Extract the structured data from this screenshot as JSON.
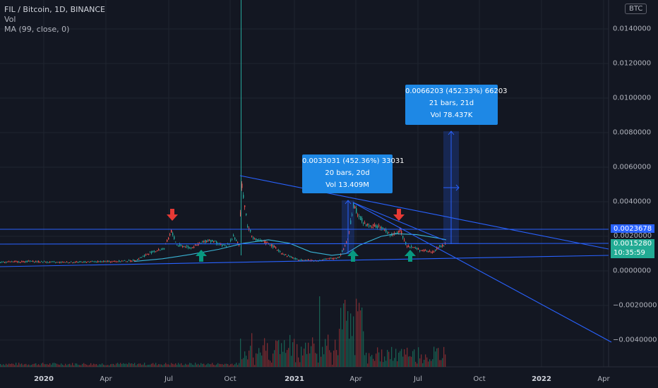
{
  "legend": {
    "title": "FIL / Bitcoin, 1D, BINANCE",
    "vol": "Vol",
    "ma": "MA (99, close, 0)"
  },
  "badge": "BTC",
  "y_axis": {
    "labels": [
      "0.0140000",
      "0.0120000",
      "0.0100000",
      "0.0080000",
      "0.0060000",
      "0.0040000",
      "0.0020000",
      "0.0000000",
      "−0.0020000",
      "−0.0040000"
    ],
    "values": [
      0.014,
      0.012,
      0.01,
      0.008,
      0.006,
      0.004,
      0.002,
      0.0,
      -0.002,
      -0.004
    ]
  },
  "x_axis": {
    "labels": [
      "2020",
      "Apr",
      "Jul",
      "Oct",
      "2021",
      "Apr",
      "Jul",
      "Oct",
      "2022",
      "Apr"
    ]
  },
  "price_tags": {
    "upper_line": "0.0023678",
    "hidden_label": "0.0020000",
    "last_price": "0.0015280",
    "countdown": "10:35:59"
  },
  "callouts": {
    "first": {
      "line1": "0.0033031 (452.36%) 33031",
      "line2": "20 bars, 20d",
      "line3": "Vol 13.409M"
    },
    "second": {
      "line1": "0.0066203 (452.33%) 66203",
      "line2": "21 bars, 21d",
      "line3": "Vol 78.437K"
    }
  },
  "colors": {
    "background": "#131722",
    "up": "#26a69a",
    "down": "#ef5350",
    "trendline": "#2962ff",
    "ma": "#3ab4d6",
    "callout": "#1e88e5",
    "arrow_down": "#e53935",
    "arrow_up": "#089981",
    "last_price": "#22ab94"
  },
  "chart_data": {
    "type": "candlestick",
    "symbol": "FIL / Bitcoin",
    "interval": "1D",
    "exchange": "BINANCE",
    "ylim": [
      -0.0045,
      0.015
    ],
    "key_points": [
      {
        "date": "2019-12",
        "close": 0.00037
      },
      {
        "date": "2020-03",
        "close": 0.0004
      },
      {
        "date": "2020-06",
        "close": 0.0005
      },
      {
        "date": "2020-07",
        "close": 0.0022
      },
      {
        "date": "2020-09",
        "close": 0.0015
      },
      {
        "date": "2020-10-15",
        "high": 0.0158,
        "close": 0.005
      },
      {
        "date": "2020-11",
        "close": 0.0017
      },
      {
        "date": "2021-01",
        "close": 0.0005
      },
      {
        "date": "2021-03",
        "close": 0.0008
      },
      {
        "date": "2021-04",
        "close": 0.0038
      },
      {
        "date": "2021-06",
        "close": 0.0023
      },
      {
        "date": "2021-07",
        "close": 0.0015
      },
      {
        "date": "2021-08",
        "close": 0.001528
      }
    ],
    "last_price": 0.001528,
    "horizontal_line": 0.0023678
  }
}
